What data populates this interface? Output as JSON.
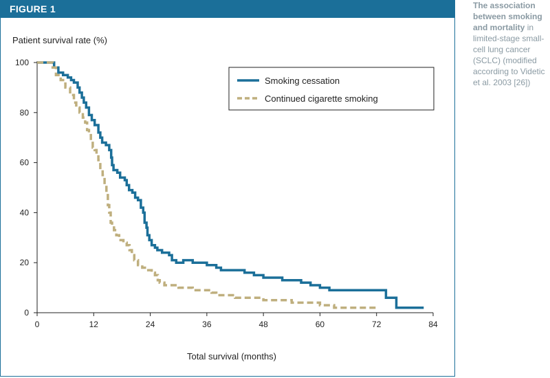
{
  "figure": {
    "label": "FIGURE 1",
    "header_color": "#1b6f99"
  },
  "caption": {
    "lead": "The association between smoking and mortality",
    "rest": " in limited-stage small-cell lung cancer (SCLC) (modified according to Videtic et al. 2003 [26])"
  },
  "chart_data": {
    "type": "line",
    "step": true,
    "title": "",
    "ylabel": "Patient survival rate (%)",
    "xlabel": "Total survival (months)",
    "xlim": [
      0,
      84
    ],
    "ylim": [
      0,
      100
    ],
    "xticks": [
      0,
      12,
      24,
      36,
      48,
      60,
      72,
      84
    ],
    "yticks": [
      0,
      20,
      40,
      60,
      80,
      100
    ],
    "grid": false,
    "legend_position": "top-right",
    "series": [
      {
        "name": "Smoking cessation",
        "color": "#1b6f99",
        "dash": "solid",
        "points": [
          [
            0,
            100
          ],
          [
            3,
            100
          ],
          [
            3.6,
            98
          ],
          [
            4.5,
            96
          ],
          [
            5.5,
            95
          ],
          [
            6.5,
            94
          ],
          [
            7.2,
            93
          ],
          [
            7.8,
            92
          ],
          [
            8.6,
            90
          ],
          [
            9.0,
            88
          ],
          [
            9.5,
            86
          ],
          [
            9.9,
            84
          ],
          [
            10.4,
            82
          ],
          [
            11.0,
            79
          ],
          [
            11.6,
            77
          ],
          [
            12.2,
            75
          ],
          [
            13.0,
            72
          ],
          [
            13.4,
            70
          ],
          [
            13.8,
            68
          ],
          [
            14.6,
            67
          ],
          [
            15.3,
            65
          ],
          [
            15.7,
            62
          ],
          [
            15.9,
            59
          ],
          [
            16.2,
            57
          ],
          [
            17.0,
            56
          ],
          [
            17.6,
            54
          ],
          [
            18.6,
            53
          ],
          [
            19.0,
            51
          ],
          [
            19.5,
            49
          ],
          [
            20.2,
            48
          ],
          [
            20.8,
            46
          ],
          [
            21.4,
            45
          ],
          [
            22.0,
            42
          ],
          [
            22.5,
            40
          ],
          [
            22.8,
            36
          ],
          [
            23.2,
            34
          ],
          [
            23.4,
            31
          ],
          [
            23.8,
            29
          ],
          [
            24.3,
            27
          ],
          [
            25.0,
            26
          ],
          [
            25.5,
            25
          ],
          [
            26.5,
            24
          ],
          [
            28.0,
            23
          ],
          [
            28.6,
            21
          ],
          [
            29.5,
            20
          ],
          [
            30.0,
            20
          ],
          [
            31.0,
            21
          ],
          [
            33.0,
            20
          ],
          [
            36.0,
            19
          ],
          [
            38.0,
            18
          ],
          [
            39.0,
            17
          ],
          [
            44.0,
            16
          ],
          [
            46.0,
            15
          ],
          [
            48.0,
            14
          ],
          [
            52.0,
            13
          ],
          [
            56.0,
            12
          ],
          [
            58.0,
            11
          ],
          [
            60.0,
            10
          ],
          [
            62.0,
            9
          ],
          [
            64.0,
            9
          ],
          [
            69.5,
            9
          ],
          [
            73.5,
            9
          ],
          [
            74.0,
            6
          ],
          [
            76.0,
            6
          ],
          [
            76.2,
            2
          ],
          [
            82.0,
            2
          ]
        ]
      },
      {
        "name": "Continued cigarette smoking",
        "color": "#bfaf7e",
        "dash": "dashed",
        "points": [
          [
            0,
            100
          ],
          [
            2.8,
            100
          ],
          [
            3.3,
            98
          ],
          [
            4.0,
            95
          ],
          [
            5.0,
            93
          ],
          [
            6.0,
            90
          ],
          [
            7.0,
            87
          ],
          [
            7.8,
            84
          ],
          [
            8.3,
            82
          ],
          [
            9.0,
            80
          ],
          [
            9.7,
            78
          ],
          [
            10.2,
            76
          ],
          [
            10.6,
            73
          ],
          [
            11.0,
            71
          ],
          [
            11.4,
            69
          ],
          [
            11.8,
            66
          ],
          [
            12.2,
            65
          ],
          [
            12.6,
            63
          ],
          [
            13.0,
            61
          ],
          [
            13.4,
            57
          ],
          [
            13.9,
            55
          ],
          [
            14.3,
            51
          ],
          [
            14.7,
            47
          ],
          [
            15.0,
            43
          ],
          [
            15.3,
            40
          ],
          [
            15.6,
            36
          ],
          [
            15.9,
            35
          ],
          [
            16.3,
            33
          ],
          [
            16.8,
            31
          ],
          [
            17.4,
            29
          ],
          [
            18.3,
            28
          ],
          [
            19.0,
            27
          ],
          [
            19.6,
            25
          ],
          [
            20.1,
            23
          ],
          [
            20.6,
            21
          ],
          [
            21.4,
            19
          ],
          [
            22.3,
            18
          ],
          [
            23.2,
            17
          ],
          [
            24.3,
            16
          ],
          [
            25.0,
            15
          ],
          [
            25.6,
            13
          ],
          [
            26.0,
            12
          ],
          [
            27.0,
            11
          ],
          [
            28.0,
            11
          ],
          [
            30.0,
            10
          ],
          [
            31.5,
            10
          ],
          [
            33.0,
            9
          ],
          [
            36.0,
            9
          ],
          [
            37.0,
            8
          ],
          [
            38.0,
            7
          ],
          [
            39.0,
            7
          ],
          [
            42.0,
            6
          ],
          [
            45.0,
            6
          ],
          [
            48.0,
            5
          ],
          [
            52.0,
            5
          ],
          [
            54.0,
            4
          ],
          [
            58.0,
            4
          ],
          [
            60.0,
            3
          ],
          [
            61.0,
            3
          ],
          [
            63.0,
            2
          ],
          [
            72.0,
            2
          ]
        ]
      }
    ]
  }
}
